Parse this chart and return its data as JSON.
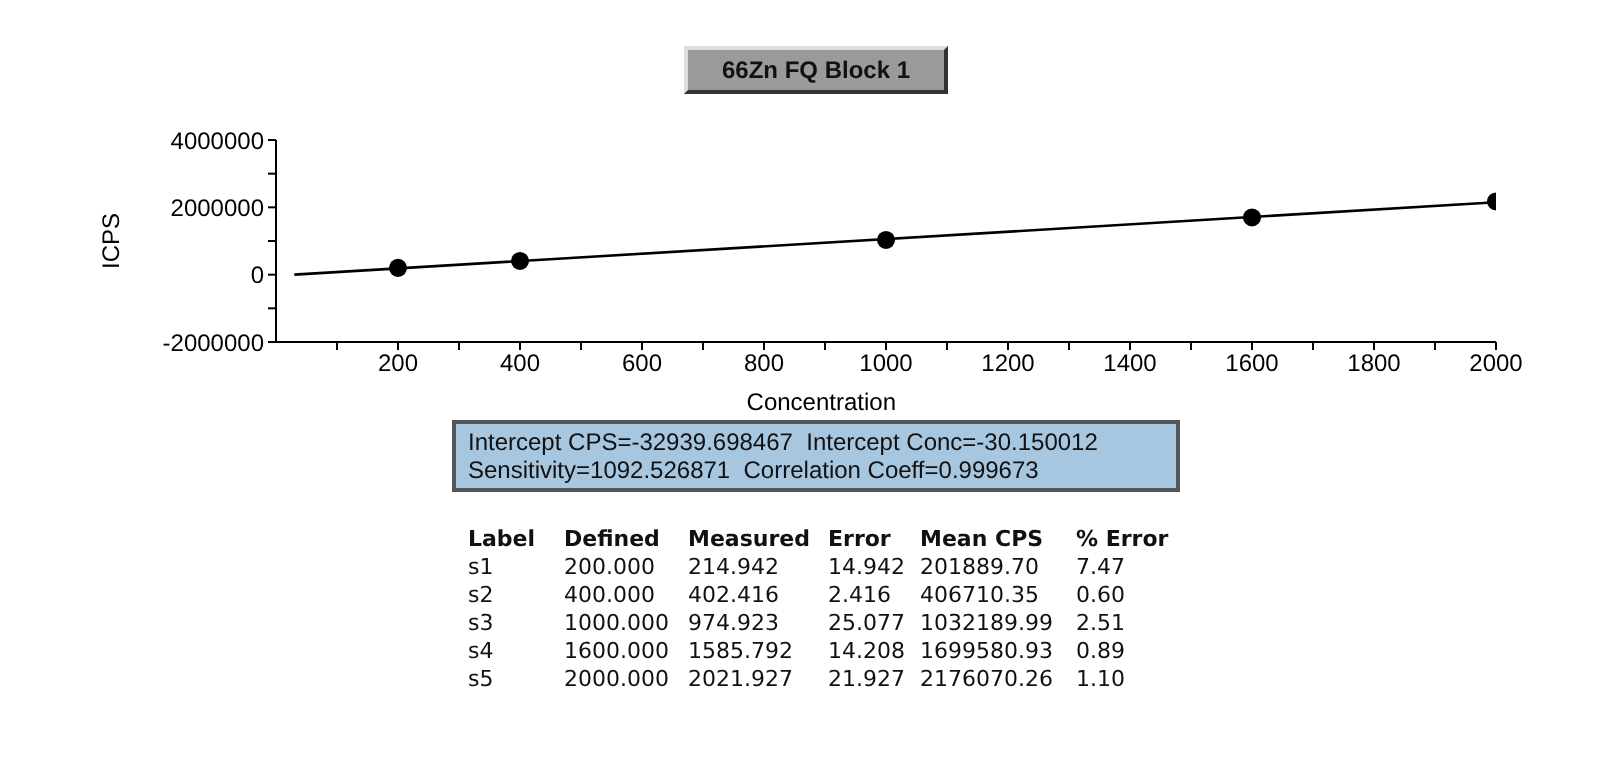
{
  "chart_data": {
    "type": "scatter",
    "title": "66Zn FQ Block 1",
    "xlabel": "Concentration",
    "ylabel": "ICPS",
    "xlim": [
      0,
      2000
    ],
    "xticks": [
      {
        "value": 100,
        "label": null
      },
      200,
      {
        "value": 300,
        "label": null
      },
      400,
      {
        "value": 500,
        "label": null
      },
      600,
      {
        "value": 700,
        "label": null
      },
      800,
      {
        "value": 900,
        "label": null
      },
      1000,
      {
        "value": 1100,
        "label": null
      },
      1200,
      {
        "value": 1300,
        "label": null
      },
      1400,
      {
        "value": 1500,
        "label": null
      },
      1600,
      {
        "value": 1700,
        "label": null
      },
      1800,
      {
        "value": 1900,
        "label": null
      },
      2000
    ],
    "ylim": [
      -2000000,
      4000000
    ],
    "yticks": [
      -2000000,
      {
        "value": -1000000,
        "label": null
      },
      0,
      {
        "value": 1000000,
        "label": null
      },
      2000000,
      {
        "value": 3000000,
        "label": null
      },
      4000000
    ],
    "grid": false,
    "marker": "circle",
    "series": [
      {
        "color": "#000000",
        "x": [
          200,
          400,
          1000,
          1600,
          2000
        ],
        "values": [
          201889.7,
          406710.35,
          1032189.99,
          1699580.93,
          2176070.26
        ]
      },
      {
        "type": "line",
        "color": "#000000",
        "marker": "none",
        "line_style": "solid",
        "x": [
          30,
          2000
        ],
        "values": [
          0,
          2150000
        ]
      }
    ],
    "annotations": [
      "Intercept CPS=-32939.698467  Intercept Conc=-30.150012",
      "Sensitivity=1092.526871  Correlation Coeff=0.999673",
      "Label",
      "Defined",
      "Measured",
      "Error",
      "Mean CPS",
      "% Error",
      "s1",
      "200.000",
      "214.942",
      "14.942",
      "201889.70",
      "7.47",
      "s2",
      "400.000",
      "402.416",
      "2.416",
      "406710.35",
      "0.60",
      "s3",
      "1000.000",
      "974.923",
      "25.077",
      "1032189.99",
      "2.51",
      "s4",
      "1600.000",
      "1585.792",
      "14.208",
      "1699580.93",
      "0.89",
      "s5",
      "2000.000",
      "2021.927",
      "21.927",
      "2176070.26",
      "1.10"
    ]
  }
}
